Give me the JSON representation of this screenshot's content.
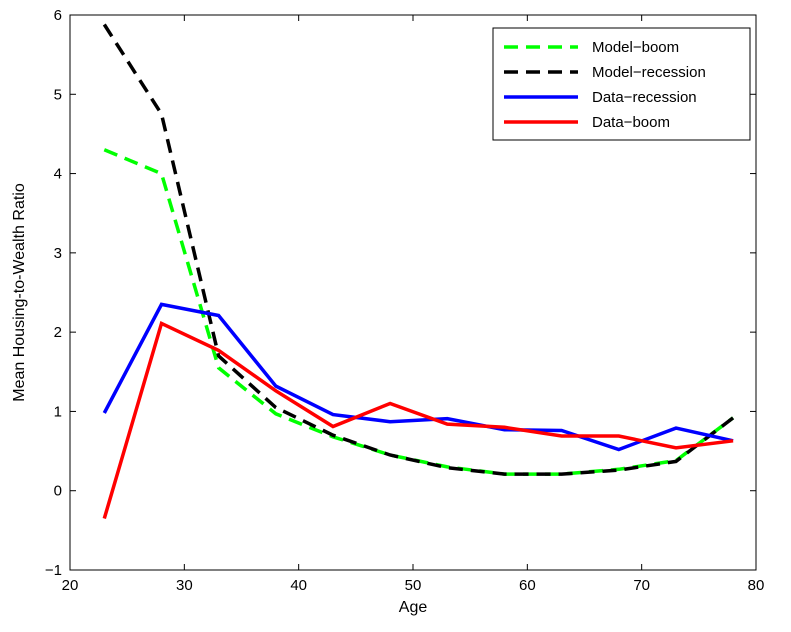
{
  "chart_data": {
    "type": "line",
    "title": "",
    "xlabel": "Age",
    "ylabel": "Mean Housing-to-Wealth Ratio",
    "xlim": [
      20,
      80
    ],
    "ylim": [
      -1,
      6
    ],
    "xticks": [
      "20",
      "30",
      "40",
      "50",
      "60",
      "70",
      "80"
    ],
    "yticks": [
      "−1",
      "0",
      "1",
      "2",
      "3",
      "4",
      "5",
      "6"
    ],
    "grid": false,
    "legend_position": "top-right",
    "series": [
      {
        "name": "Model−boom",
        "color": "#00ff00",
        "style": "dashed",
        "x": [
          23,
          28,
          33,
          38,
          43,
          48,
          53,
          58,
          63,
          68,
          73,
          78
        ],
        "y": [
          4.3,
          4.0,
          1.55,
          0.97,
          0.68,
          0.45,
          0.3,
          0.21,
          0.21,
          0.27,
          0.38,
          0.92
        ]
      },
      {
        "name": "Model−recession",
        "color": "#000000",
        "style": "dashed",
        "x": [
          23,
          28,
          33,
          38,
          43,
          48,
          53,
          58,
          63,
          68,
          73,
          78
        ],
        "y": [
          5.88,
          4.75,
          1.7,
          1.05,
          0.7,
          0.45,
          0.29,
          0.21,
          0.21,
          0.26,
          0.37,
          0.92
        ]
      },
      {
        "name": "Data−recession",
        "color": "#0000ff",
        "style": "solid",
        "x": [
          23,
          28,
          33,
          38,
          43,
          48,
          53,
          58,
          63,
          68,
          73,
          78
        ],
        "y": [
          0.98,
          2.35,
          2.21,
          1.32,
          0.96,
          0.87,
          0.91,
          0.77,
          0.76,
          0.52,
          0.79,
          0.63
        ]
      },
      {
        "name": "Data−boom",
        "color": "#ff0000",
        "style": "solid",
        "x": [
          23,
          28,
          33,
          38,
          43,
          48,
          53,
          58,
          63,
          68,
          73,
          78
        ],
        "y": [
          -0.35,
          2.11,
          1.77,
          1.26,
          0.81,
          1.1,
          0.84,
          0.8,
          0.69,
          0.69,
          0.54,
          0.63
        ]
      }
    ]
  }
}
